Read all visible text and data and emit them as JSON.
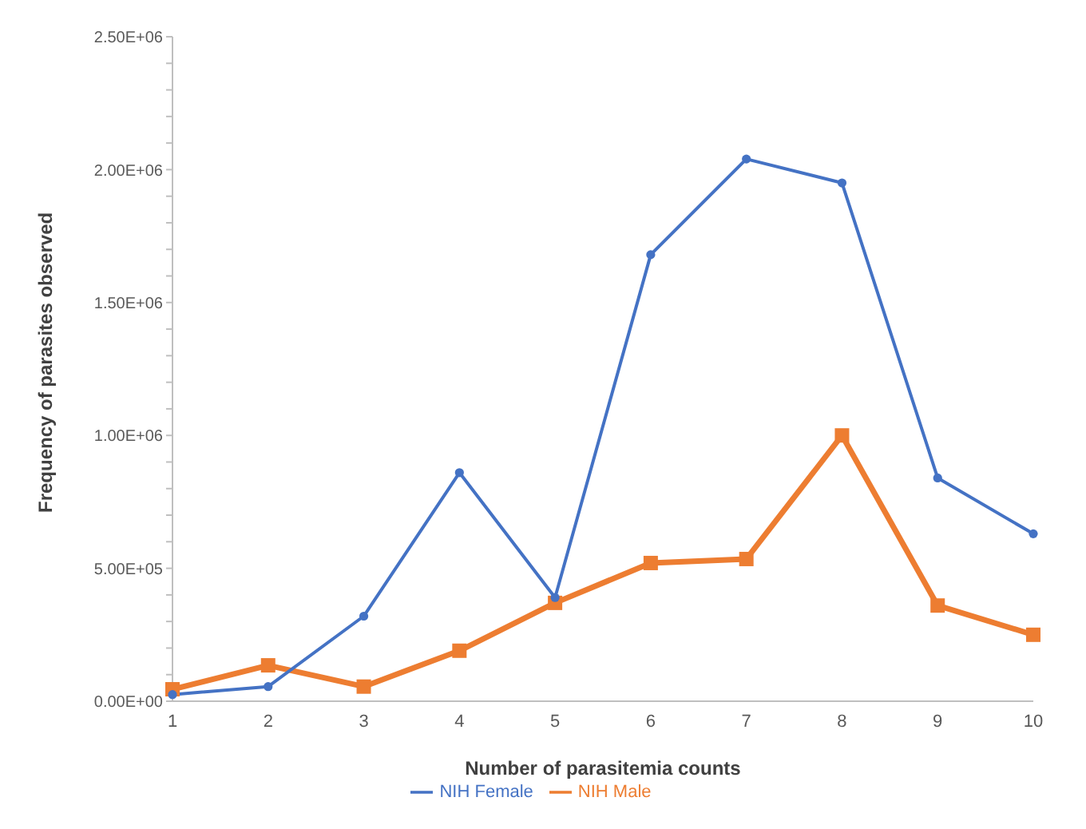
{
  "chart_data": {
    "type": "line",
    "xlabel": "Number of parasitemia counts",
    "ylabel": "Frequency of parasites observed",
    "categories": [
      "1",
      "2",
      "3",
      "4",
      "5",
      "6",
      "7",
      "8",
      "9",
      "10"
    ],
    "series": [
      {
        "name": "NIH Female",
        "color": "#4472c4",
        "marker": "circle",
        "values": [
          25000,
          55000,
          320000,
          860000,
          390000,
          1680000,
          2040000,
          1950000,
          840000,
          630000
        ]
      },
      {
        "name": "NIH Male",
        "color": "#ed7d31",
        "marker": "square",
        "values": [
          45000,
          135000,
          55000,
          190000,
          370000,
          520000,
          535000,
          1000000,
          360000,
          250000
        ]
      }
    ],
    "ylim": [
      0,
      2500000
    ],
    "yticks": [
      {
        "value": 0,
        "label": "0.00E+00"
      },
      {
        "value": 100000,
        "label": null
      },
      {
        "value": 200000,
        "label": null
      },
      {
        "value": 300000,
        "label": null
      },
      {
        "value": 400000,
        "label": null
      },
      {
        "value": 500000,
        "label": "5.00E+05"
      },
      {
        "value": 600000,
        "label": null
      },
      {
        "value": 700000,
        "label": null
      },
      {
        "value": 800000,
        "label": null
      },
      {
        "value": 900000,
        "label": null
      },
      {
        "value": 1000000,
        "label": "1.00E+06"
      },
      {
        "value": 1100000,
        "label": null
      },
      {
        "value": 1200000,
        "label": null
      },
      {
        "value": 1300000,
        "label": null
      },
      {
        "value": 1400000,
        "label": null
      },
      {
        "value": 1500000,
        "label": "1.50E+06"
      },
      {
        "value": 1600000,
        "label": null
      },
      {
        "value": 1700000,
        "label": null
      },
      {
        "value": 1800000,
        "label": null
      },
      {
        "value": 1900000,
        "label": null
      },
      {
        "value": 2000000,
        "label": "2.00E+06"
      },
      {
        "value": 2100000,
        "label": null
      },
      {
        "value": 2200000,
        "label": null
      },
      {
        "value": 2300000,
        "label": null
      },
      {
        "value": 2400000,
        "label": null
      },
      {
        "value": 2500000,
        "label": "2.50E+06"
      }
    ],
    "grid": false,
    "legend": "bottom",
    "line_style": "solid"
  }
}
